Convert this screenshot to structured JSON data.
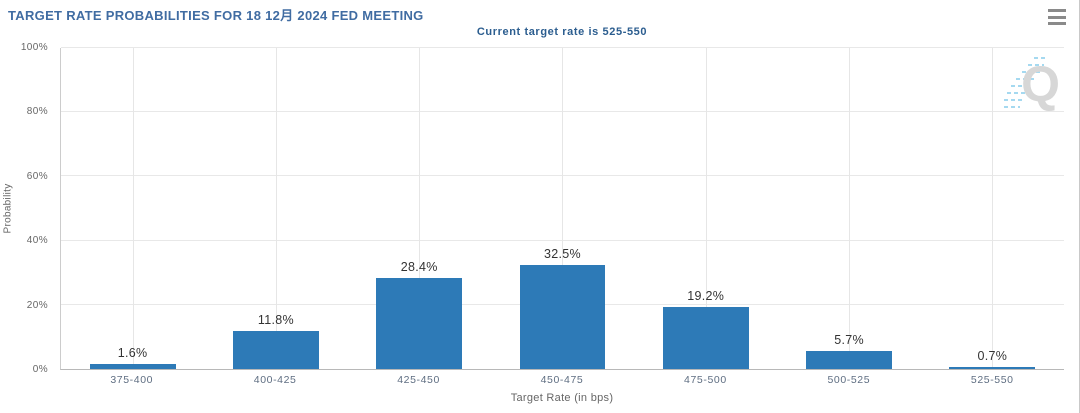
{
  "header": {
    "title": "TARGET RATE PROBABILITIES FOR 18 12月 2024 FED MEETING",
    "subtitle": "Current target rate is 525-550",
    "menu_icon": "hamburger-icon"
  },
  "colors": {
    "title_text": "#406ca2",
    "subtitle_text": "#2b5d8f",
    "bar_fill": "#2d7ab7",
    "axis_text": "#666666",
    "category_text": "#5f6e82",
    "data_label_text": "#333333",
    "gridline": "#e8e8e8",
    "panel_border": "#c9c9c9",
    "watermark_gray": "#d7d7d7",
    "watermark_hatch_blue": "#a5d9f0"
  },
  "watermark": {
    "letter": "Q"
  },
  "chart_data": {
    "type": "bar",
    "title": "TARGET RATE PROBABILITIES FOR 18 12月 2024 FED MEETING",
    "subtitle": "Current target rate is 525-550",
    "categories": [
      "375-400",
      "400-425",
      "425-450",
      "450-475",
      "475-500",
      "500-525",
      "525-550"
    ],
    "values": [
      1.6,
      11.8,
      28.4,
      32.5,
      19.2,
      5.7,
      0.7
    ],
    "data_labels": [
      "1.6%",
      "11.8%",
      "28.4%",
      "32.5%",
      "19.2%",
      "5.7%",
      "0.7%"
    ],
    "xlabel": "Target Rate (in bps)",
    "ylabel": "Probability",
    "ylim": [
      0,
      100
    ],
    "yticks": [
      "0%",
      "20%",
      "40%",
      "60%",
      "80%",
      "100%"
    ],
    "grid": true,
    "legend": "none",
    "bar_color": "#2d7ab7"
  }
}
